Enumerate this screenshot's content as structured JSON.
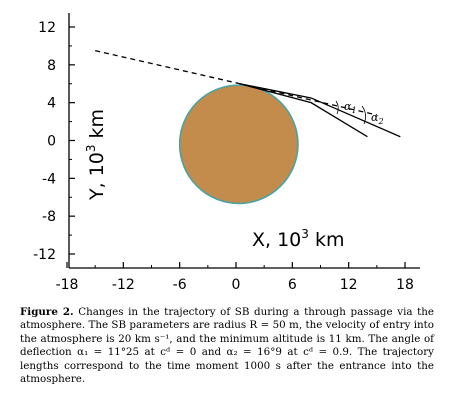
{
  "figure": {
    "xlabel": "X, 10",
    "xlabel_sup": "3",
    "xlabel_unit": " km",
    "ylabel": "Y, 10",
    "ylabel_sup": "3",
    "ylabel_unit": " km",
    "angle_labels": [
      "α",
      "1",
      "α",
      "2"
    ],
    "colors": {
      "planet_fill": "#c48c4c",
      "planet_edge": "#4aa3a3",
      "lines": "#000000"
    }
  },
  "chart_data": {
    "type": "line",
    "title": "",
    "xlabel": "X, 10³ km",
    "ylabel": "Y, 10³ km",
    "xlim": [
      -18,
      18
    ],
    "ylim": [
      -13,
      12.5
    ],
    "xticks": [
      -18,
      -12,
      -6,
      0,
      6,
      12,
      18
    ],
    "yticks": [
      12,
      8,
      4,
      0,
      -4,
      -8,
      -12
    ],
    "xtick_labels": [
      "-18",
      "-12",
      "-6",
      "0",
      "6",
      "12",
      "18"
    ],
    "ytick_labels": [
      "12",
      "8",
      "4",
      "0",
      "-4",
      "-8",
      "-12"
    ],
    "circle": {
      "cx": 0.3,
      "cy": -0.4,
      "r": 6.3
    },
    "series": [
      {
        "style": "dashed",
        "x": [
          -15,
          15
        ],
        "y": [
          9.5,
          2.7
        ]
      },
      {
        "style": "solid",
        "x": [
          0.4,
          8,
          14
        ],
        "y": [
          6.0,
          4.0,
          0.4
        ]
      },
      {
        "style": "solid",
        "x": [
          0.4,
          8,
          17.5
        ],
        "y": [
          6.0,
          4.5,
          0.4
        ]
      }
    ]
  },
  "caption": {
    "label": "Figure 2.",
    "text": "Changes in the trajectory of SB during a through passage via the atmosphere. The SB parameters are radius R = 50 m, the velocity of entry into the atmosphere is 20 km s⁻¹, and the minimum altitude is 11 km. The angle of deflection α₁ = 11°25 at cᵈ = 0 and α₂ = 16°9 at cᵈ = 0.9. The trajectory lengths correspond to the time moment 1000 s after the entrance into the atmosphere."
  }
}
